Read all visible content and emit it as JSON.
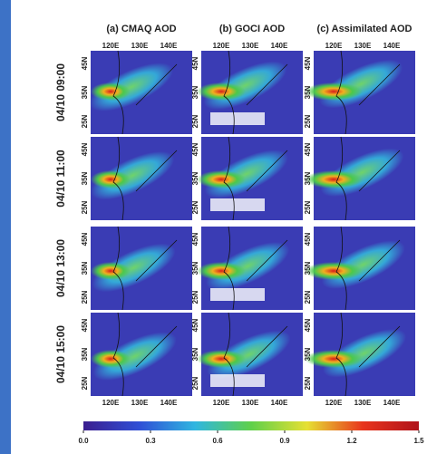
{
  "columns": [
    "(a) CMAQ AOD",
    "(b) GOCI AOD",
    "(c) Assimilated AOD"
  ],
  "rows": [
    "04/10 09:00",
    "04/10 11:00",
    "04/10 13:00",
    "04/10 15:00"
  ],
  "lon_labels": [
    "120E",
    "130E",
    "140E"
  ],
  "lat_labels": [
    "45N",
    "35N",
    "25N"
  ],
  "colorbar": {
    "ticks": [
      {
        "value": 0,
        "label": "0.0"
      },
      {
        "value": 0.3,
        "label": "0.3"
      },
      {
        "value": 0.6,
        "label": "0.6"
      },
      {
        "value": 0.9,
        "label": "0.9"
      },
      {
        "value": 1.2,
        "label": "1.2"
      },
      {
        "value": 1.5,
        "label": "1.5"
      }
    ],
    "colors": [
      "#3b1e8f",
      "#2f4fd6",
      "#2fb6e0",
      "#5fd04a",
      "#e6e033",
      "#e8341c",
      "#b0121a"
    ]
  }
}
